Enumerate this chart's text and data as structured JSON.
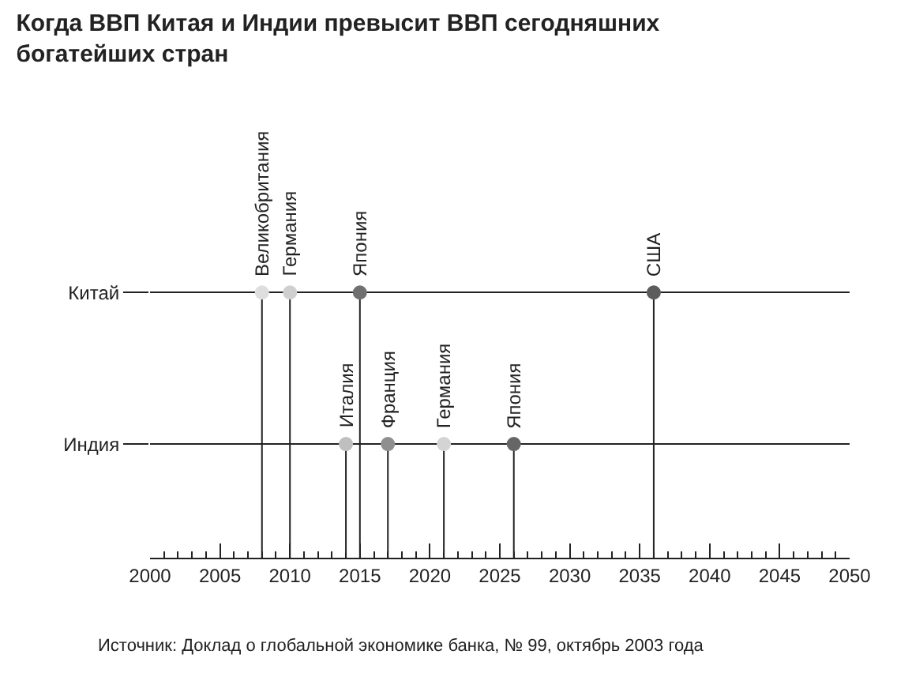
{
  "chart_data": {
    "type": "scatter",
    "orientation": "horizontal",
    "title": "Когда ВВП Китая и Индии превысит ВВП сегодняшних богатейших стран",
    "categories": [
      "Китай",
      "Индия"
    ],
    "series": [
      {
        "values": [
          2008,
          2014
        ],
        "colors": [
          "#dedede",
          "#bfbfbf"
        ]
      },
      {
        "values": [
          2010,
          2017
        ],
        "colors": [
          "#cfcfcf",
          "#8f8f8f"
        ]
      },
      {
        "values": [
          2015,
          2021
        ],
        "colors": [
          "#707070",
          "#d4d4d4"
        ]
      },
      {
        "values": [
          2036,
          2026
        ],
        "colors": [
          "#5c5c5c",
          "#666666"
        ]
      }
    ],
    "xlim": [
      2000,
      2050
    ],
    "xticks": [
      2000,
      {
        "value": 2001,
        "label": null
      },
      {
        "value": 2002,
        "label": null
      },
      {
        "value": 2003,
        "label": null
      },
      {
        "value": 2004,
        "label": null
      },
      2005,
      {
        "value": 2006,
        "label": null
      },
      {
        "value": 2007,
        "label": null
      },
      {
        "value": 2008,
        "label": null
      },
      {
        "value": 2009,
        "label": null
      },
      2010,
      {
        "value": 2011,
        "label": null
      },
      {
        "value": 2012,
        "label": null
      },
      {
        "value": 2013,
        "label": null
      },
      {
        "value": 2014,
        "label": null
      },
      2015,
      {
        "value": 2016,
        "label": null
      },
      {
        "value": 2017,
        "label": null
      },
      {
        "value": 2018,
        "label": null
      },
      {
        "value": 2019,
        "label": null
      },
      2020,
      {
        "value": 2021,
        "label": null
      },
      {
        "value": 2022,
        "label": null
      },
      {
        "value": 2023,
        "label": null
      },
      {
        "value": 2024,
        "label": null
      },
      2025,
      {
        "value": 2026,
        "label": null
      },
      {
        "value": 2027,
        "label": null
      },
      {
        "value": 2028,
        "label": null
      },
      {
        "value": 2029,
        "label": null
      },
      2030,
      {
        "value": 2031,
        "label": null
      },
      {
        "value": 2032,
        "label": null
      },
      {
        "value": 2033,
        "label": null
      },
      {
        "value": 2034,
        "label": null
      },
      2035,
      {
        "value": 2036,
        "label": null
      },
      {
        "value": 2037,
        "label": null
      },
      {
        "value": 2038,
        "label": null
      },
      {
        "value": 2039,
        "label": null
      },
      2040,
      {
        "value": 2041,
        "label": null
      },
      {
        "value": 2042,
        "label": null
      },
      {
        "value": 2043,
        "label": null
      },
      {
        "value": 2044,
        "label": null
      },
      2045,
      {
        "value": 2046,
        "label": null
      },
      {
        "value": 2047,
        "label": null
      },
      {
        "value": 2048,
        "label": null
      },
      {
        "value": 2049,
        "label": null
      },
      2050
    ],
    "grid": "y",
    "marker": "circle",
    "ref_lines": [
      {
        "axis": "x",
        "value": 2008
      },
      {
        "axis": "x",
        "value": 2010
      },
      {
        "axis": "x",
        "value": 2015
      },
      {
        "axis": "x",
        "value": 2036
      },
      {
        "axis": "x",
        "value": 2014
      },
      {
        "axis": "x",
        "value": 2017
      },
      {
        "axis": "x",
        "value": 2021
      },
      {
        "axis": "x",
        "value": 2026
      }
    ],
    "annotations": [
      {
        "text": "Великобритания",
        "x": 2008,
        "y": "Китай"
      },
      {
        "text": "Германия",
        "x": 2010,
        "y": "Китай"
      },
      {
        "text": "Япония",
        "x": 2015,
        "y": "Китай"
      },
      {
        "text": "США",
        "x": 2036,
        "y": "Китай"
      },
      {
        "text": "Италия",
        "x": 2014,
        "y": "Индия"
      },
      {
        "text": "Франция",
        "x": 2017,
        "y": "Индия"
      },
      {
        "text": "Германия",
        "x": 2021,
        "y": "Индия"
      },
      {
        "text": "Япония",
        "x": 2026,
        "y": "Индия"
      },
      "Источник: Доклад о глобальной экономике банка, № 99, октябрь 2003 года"
    ]
  }
}
